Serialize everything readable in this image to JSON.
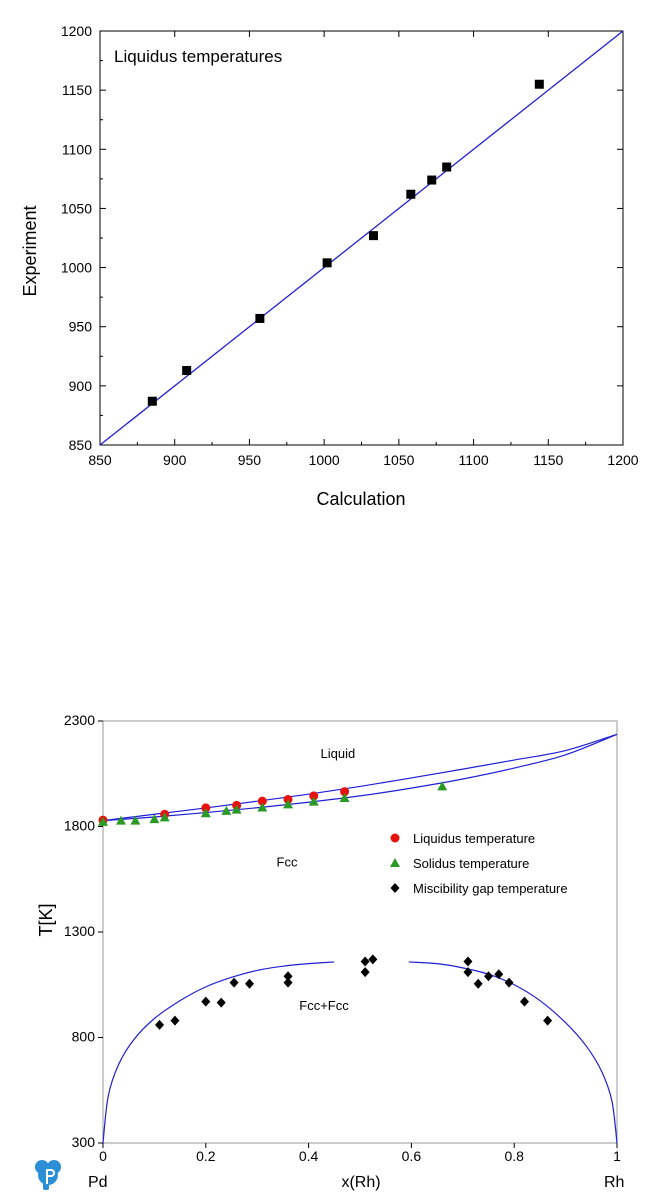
{
  "chart_data": [
    {
      "type": "scatter",
      "title": "",
      "annotation": "Liquidus temperatures",
      "xlabel": "Calculation",
      "ylabel": "Experiment",
      "xlim": [
        850,
        1200
      ],
      "ylim": [
        850,
        1200
      ],
      "x_ticks": [
        850,
        900,
        950,
        1000,
        1050,
        1100,
        1150,
        1200
      ],
      "y_ticks": [
        850,
        900,
        950,
        1000,
        1050,
        1100,
        1150,
        1200
      ],
      "grid": false,
      "marker": "square",
      "colors": {
        "points": "#000000",
        "line": "#1f1fd6"
      },
      "line": {
        "x": [
          850,
          1200
        ],
        "y": [
          850,
          1200
        ]
      },
      "points": [
        {
          "x": 885,
          "y": 887
        },
        {
          "x": 908,
          "y": 913
        },
        {
          "x": 957,
          "y": 957
        },
        {
          "x": 1002,
          "y": 1004
        },
        {
          "x": 1033,
          "y": 1027
        },
        {
          "x": 1058,
          "y": 1062
        },
        {
          "x": 1072,
          "y": 1074
        },
        {
          "x": 1082,
          "y": 1085
        },
        {
          "x": 1144,
          "y": 1155
        }
      ]
    },
    {
      "type": "line",
      "title": "",
      "xlabel": "x(Rh)",
      "ylabel": "T[K]",
      "xlim": [
        0,
        1
      ],
      "ylim": [
        300,
        2300
      ],
      "x_ticks": [
        0,
        0.2,
        0.4,
        0.6,
        0.8,
        1
      ],
      "y_ticks": [
        300,
        800,
        1300,
        1800,
        2300
      ],
      "grid": false,
      "end_labels": {
        "left": "Pd",
        "right": "Rh"
      },
      "region_labels": [
        {
          "text": "Liquid",
          "x": 0.457,
          "y": 2125
        },
        {
          "text": "Fcc",
          "x": 0.358,
          "y": 1610
        },
        {
          "text": "Fcc+Fcc",
          "x": 0.43,
          "y": 930
        }
      ],
      "legend_position": "right",
      "legend": [
        {
          "label": "Liquidus temperature",
          "marker": "circle",
          "color": "#e8120c"
        },
        {
          "label": "Solidus temperature",
          "marker": "triangle",
          "color": "#2a9a24"
        },
        {
          "label": "Miscibility gap temperature",
          "marker": "diamond",
          "color": "#000000"
        }
      ],
      "curve_color": "#1f1fd6",
      "curves": {
        "liquidus": {
          "x": [
            0,
            0.1,
            0.2,
            0.3,
            0.4,
            0.5,
            0.6,
            0.7,
            0.8,
            0.9,
            1.0
          ],
          "y": [
            1828,
            1858,
            1888,
            1920,
            1953,
            1990,
            2030,
            2072,
            2115,
            2160,
            2237
          ]
        },
        "solidus": {
          "x": [
            0,
            0.1,
            0.2,
            0.3,
            0.4,
            0.5,
            0.6,
            0.7,
            0.8,
            0.9,
            1.0
          ],
          "y": [
            1828,
            1845,
            1866,
            1889,
            1915,
            1945,
            1982,
            2025,
            2077,
            2140,
            2237
          ]
        },
        "gap_left": {
          "x": [
            0,
            0.01,
            0.03,
            0.06,
            0.1,
            0.15,
            0.2,
            0.25,
            0.3,
            0.35,
            0.4,
            0.45
          ],
          "y": [
            300,
            520,
            670,
            790,
            890,
            975,
            1040,
            1085,
            1118,
            1138,
            1150,
            1158
          ]
        },
        "gap_right": {
          "x": [
            0.595,
            0.65,
            0.7,
            0.75,
            0.8,
            0.85,
            0.9,
            0.94,
            0.97,
            0.99,
            1.0
          ],
          "y": [
            1158,
            1150,
            1130,
            1100,
            1050,
            975,
            870,
            760,
            640,
            500,
            300
          ]
        }
      },
      "liquidus_points": [
        {
          "x": 0.0,
          "y": 1830
        },
        {
          "x": 0.12,
          "y": 1858
        },
        {
          "x": 0.2,
          "y": 1888
        },
        {
          "x": 0.26,
          "y": 1900
        },
        {
          "x": 0.31,
          "y": 1920
        },
        {
          "x": 0.36,
          "y": 1928
        },
        {
          "x": 0.41,
          "y": 1945
        },
        {
          "x": 0.47,
          "y": 1965
        }
      ],
      "solidus_points": [
        {
          "x": 0.0,
          "y": 1822
        },
        {
          "x": 0.035,
          "y": 1828
        },
        {
          "x": 0.063,
          "y": 1828
        },
        {
          "x": 0.1,
          "y": 1835
        },
        {
          "x": 0.12,
          "y": 1843
        },
        {
          "x": 0.2,
          "y": 1863
        },
        {
          "x": 0.24,
          "y": 1874
        },
        {
          "x": 0.26,
          "y": 1880
        },
        {
          "x": 0.31,
          "y": 1890
        },
        {
          "x": 0.36,
          "y": 1905
        },
        {
          "x": 0.41,
          "y": 1918
        },
        {
          "x": 0.47,
          "y": 1935
        },
        {
          "x": 0.66,
          "y": 1990
        }
      ],
      "gap_points": [
        {
          "x": 0.11,
          "y": 860
        },
        {
          "x": 0.14,
          "y": 880
        },
        {
          "x": 0.2,
          "y": 970
        },
        {
          "x": 0.23,
          "y": 965
        },
        {
          "x": 0.255,
          "y": 1060
        },
        {
          "x": 0.285,
          "y": 1055
        },
        {
          "x": 0.36,
          "y": 1090
        },
        {
          "x": 0.36,
          "y": 1060
        },
        {
          "x": 0.51,
          "y": 1160
        },
        {
          "x": 0.525,
          "y": 1170
        },
        {
          "x": 0.51,
          "y": 1110
        },
        {
          "x": 0.71,
          "y": 1160
        },
        {
          "x": 0.71,
          "y": 1110
        },
        {
          "x": 0.73,
          "y": 1055
        },
        {
          "x": 0.75,
          "y": 1090
        },
        {
          "x": 0.77,
          "y": 1100
        },
        {
          "x": 0.79,
          "y": 1060
        },
        {
          "x": 0.82,
          "y": 970
        },
        {
          "x": 0.865,
          "y": 880
        }
      ]
    }
  ]
}
